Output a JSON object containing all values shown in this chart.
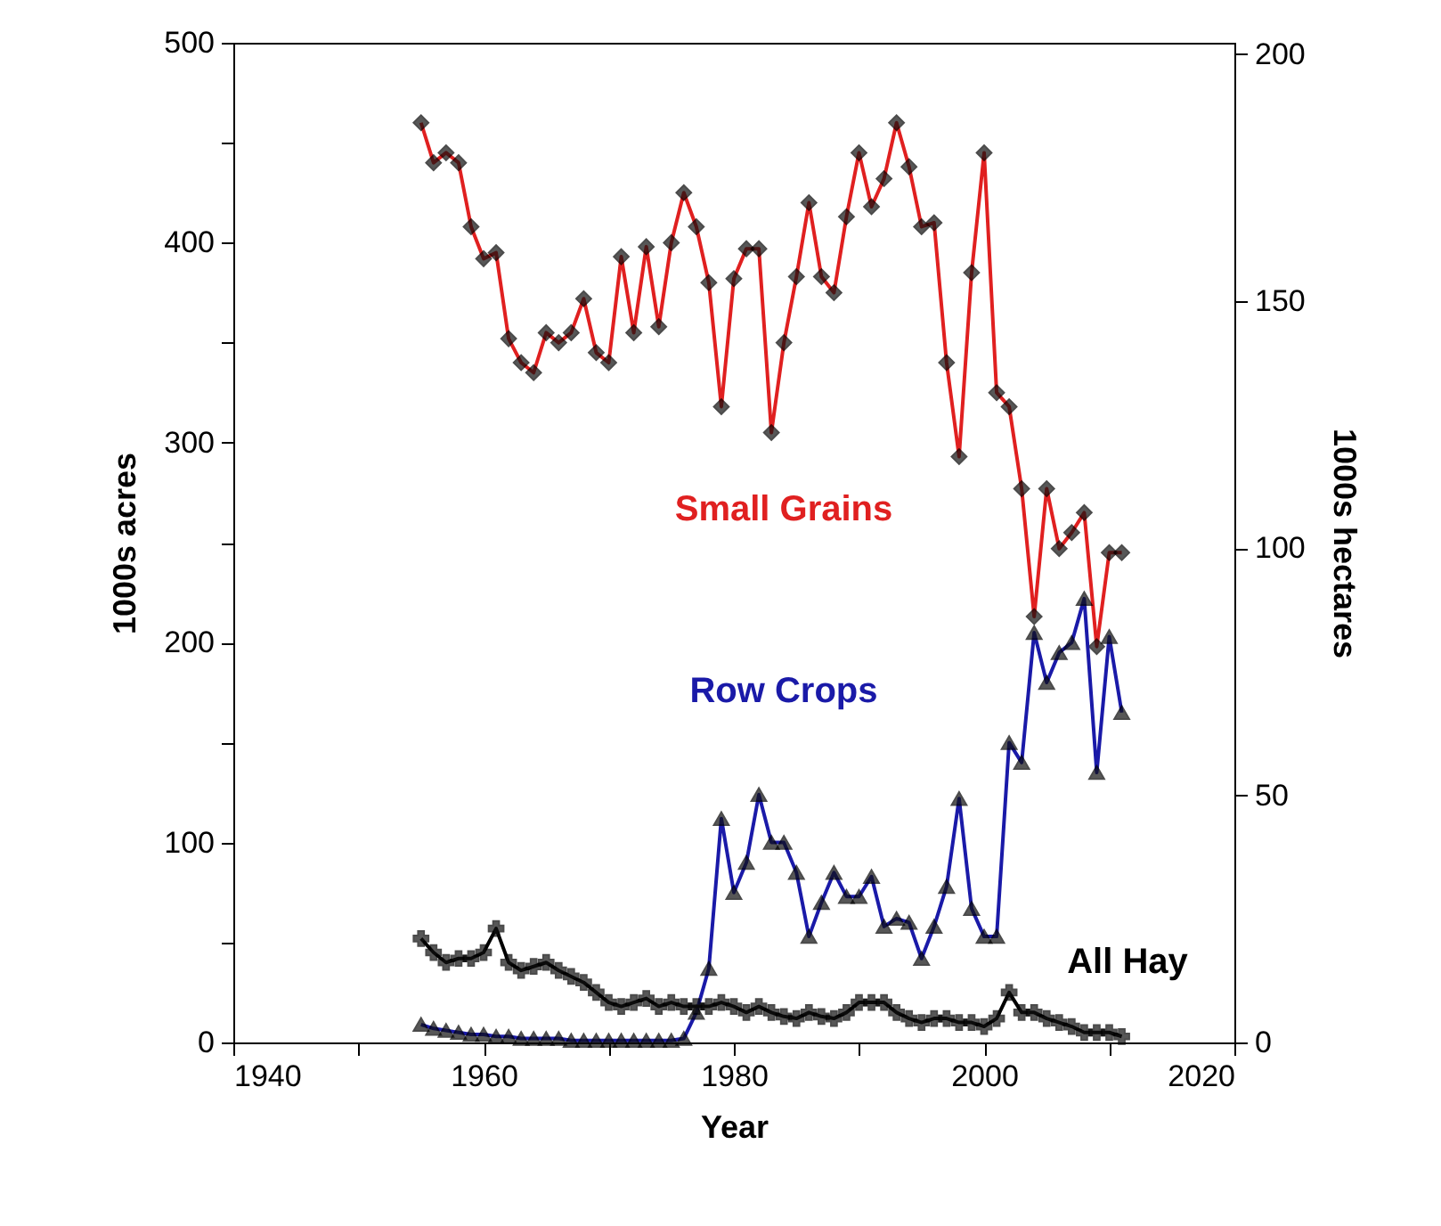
{
  "chart_data": {
    "type": "line",
    "xlabel": "Year",
    "ylabel": "1000s acres",
    "y2label": "1000s hectares",
    "x": [
      1955,
      1956,
      1957,
      1958,
      1959,
      1960,
      1961,
      1962,
      1963,
      1964,
      1965,
      1966,
      1967,
      1968,
      1969,
      1970,
      1971,
      1972,
      1973,
      1974,
      1975,
      1976,
      1977,
      1978,
      1979,
      1980,
      1981,
      1982,
      1983,
      1984,
      1985,
      1986,
      1987,
      1988,
      1989,
      1990,
      1991,
      1992,
      1993,
      1994,
      1995,
      1996,
      1997,
      1998,
      1999,
      2000,
      2001,
      2002,
      2003,
      2004,
      2005,
      2006,
      2007,
      2008,
      2009,
      2010,
      2011
    ],
    "series": [
      {
        "name": "Small Grains",
        "color": "#e02020",
        "marker": "diamond",
        "values": [
          460,
          440,
          445,
          440,
          408,
          392,
          395,
          352,
          340,
          335,
          355,
          350,
          355,
          372,
          345,
          340,
          393,
          355,
          398,
          358,
          400,
          425,
          408,
          380,
          318,
          382,
          397,
          397,
          305,
          350,
          383,
          420,
          383,
          375,
          413,
          445,
          418,
          432,
          460,
          438,
          408,
          410,
          340,
          293,
          385,
          445,
          325,
          318,
          277,
          213,
          277,
          247,
          255,
          265,
          198,
          245,
          245
        ]
      },
      {
        "name": "Row Crops",
        "color": "#1a1aa8",
        "marker": "triangle",
        "values": [
          9,
          7,
          6,
          5,
          4,
          4,
          3,
          3,
          2,
          2,
          2,
          2,
          1,
          1,
          1,
          1,
          1,
          1,
          1,
          1,
          1,
          2,
          15,
          37,
          112,
          75,
          90,
          124,
          100,
          100,
          85,
          53,
          70,
          85,
          73,
          73,
          83,
          58,
          62,
          60,
          42,
          58,
          78,
          122,
          67,
          53,
          53,
          150,
          140,
          205,
          180,
          195,
          200,
          222,
          135,
          203,
          165
        ]
      },
      {
        "name": "All Hay",
        "color": "#000000",
        "marker": "cross",
        "values": [
          52,
          45,
          40,
          42,
          42,
          45,
          57,
          40,
          36,
          38,
          40,
          36,
          33,
          30,
          25,
          20,
          18,
          20,
          22,
          18,
          20,
          18,
          18,
          18,
          20,
          18,
          15,
          18,
          15,
          13,
          12,
          15,
          13,
          12,
          15,
          20,
          20,
          20,
          15,
          12,
          10,
          12,
          12,
          10,
          10,
          8,
          12,
          25,
          15,
          15,
          12,
          10,
          8,
          5,
          5,
          5,
          3
        ]
      }
    ],
    "xlim": [
      1940,
      2020
    ],
    "xticks": [
      1940,
      {
        "value": 1950,
        "label": null
      },
      1960,
      {
        "value": 1970,
        "label": null
      },
      1980,
      {
        "value": 1990,
        "label": null
      },
      2000,
      {
        "value": 2010,
        "label": null
      },
      2020
    ],
    "ylim": [
      0,
      500
    ],
    "yticks": [
      0,
      {
        "value": 50,
        "label": null
      },
      100,
      {
        "value": 150,
        "label": null
      },
      200,
      {
        "value": 250,
        "label": null
      },
      300,
      {
        "value": 350,
        "label": null
      },
      400,
      {
        "value": 450,
        "label": null
      },
      500
    ],
    "y2lim": [
      0,
      202.3
    ],
    "y2ticks": [
      0,
      50,
      100,
      150,
      200
    ],
    "grid": false,
    "legend": false,
    "line_style": "solid"
  }
}
